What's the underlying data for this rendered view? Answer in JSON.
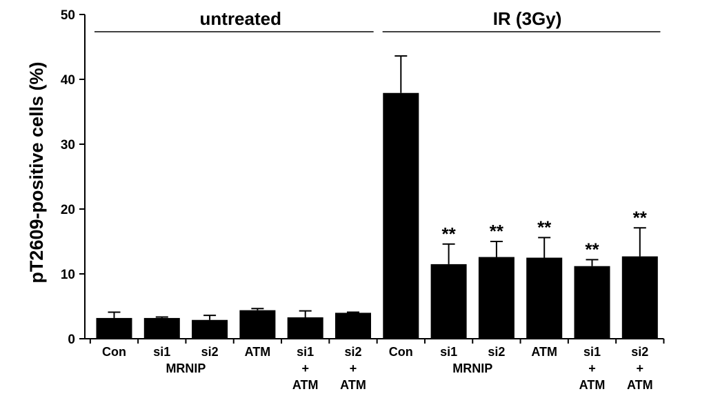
{
  "chart_data": {
    "type": "bar",
    "ylabel": "pT2609-positive cells (%)",
    "ylim": [
      0,
      50
    ],
    "yticks": [
      0,
      10,
      20,
      30,
      40,
      50
    ],
    "groups": [
      {
        "label": "untreated",
        "bars": [
          0,
          1,
          2,
          3,
          4,
          5
        ]
      },
      {
        "label": "IR (3Gy)",
        "bars": [
          6,
          7,
          8,
          9,
          10,
          11
        ]
      }
    ],
    "categories": [
      [
        "Con"
      ],
      [
        "si1"
      ],
      [
        "si2"
      ],
      [
        "ATM"
      ],
      [
        "si1",
        "+",
        "ATM"
      ],
      [
        "si2",
        "+",
        "ATM"
      ],
      [
        "Con"
      ],
      [
        "si1"
      ],
      [
        "si2"
      ],
      [
        "ATM"
      ],
      [
        "si1",
        "+",
        "ATM"
      ],
      [
        "si2",
        "+",
        "ATM"
      ]
    ],
    "category_group_labels": [
      {
        "text": "MRNIP",
        "under": [
          1,
          2
        ]
      },
      {
        "text": "MRNIP",
        "under": [
          7,
          8
        ]
      }
    ],
    "values": [
      3.2,
      3.2,
      2.9,
      4.4,
      3.3,
      4.0,
      37.9,
      11.5,
      12.6,
      12.5,
      11.2,
      12.7
    ],
    "errors": [
      0.9,
      0.15,
      0.7,
      0.25,
      1.0,
      0.1,
      5.7,
      3.1,
      2.4,
      3.1,
      1.0,
      4.4
    ],
    "annotations": [
      "",
      "",
      "",
      "",
      "",
      "",
      "",
      "**",
      "**",
      "**",
      "**",
      "**"
    ],
    "bar_color": "#000000",
    "grid": false
  }
}
